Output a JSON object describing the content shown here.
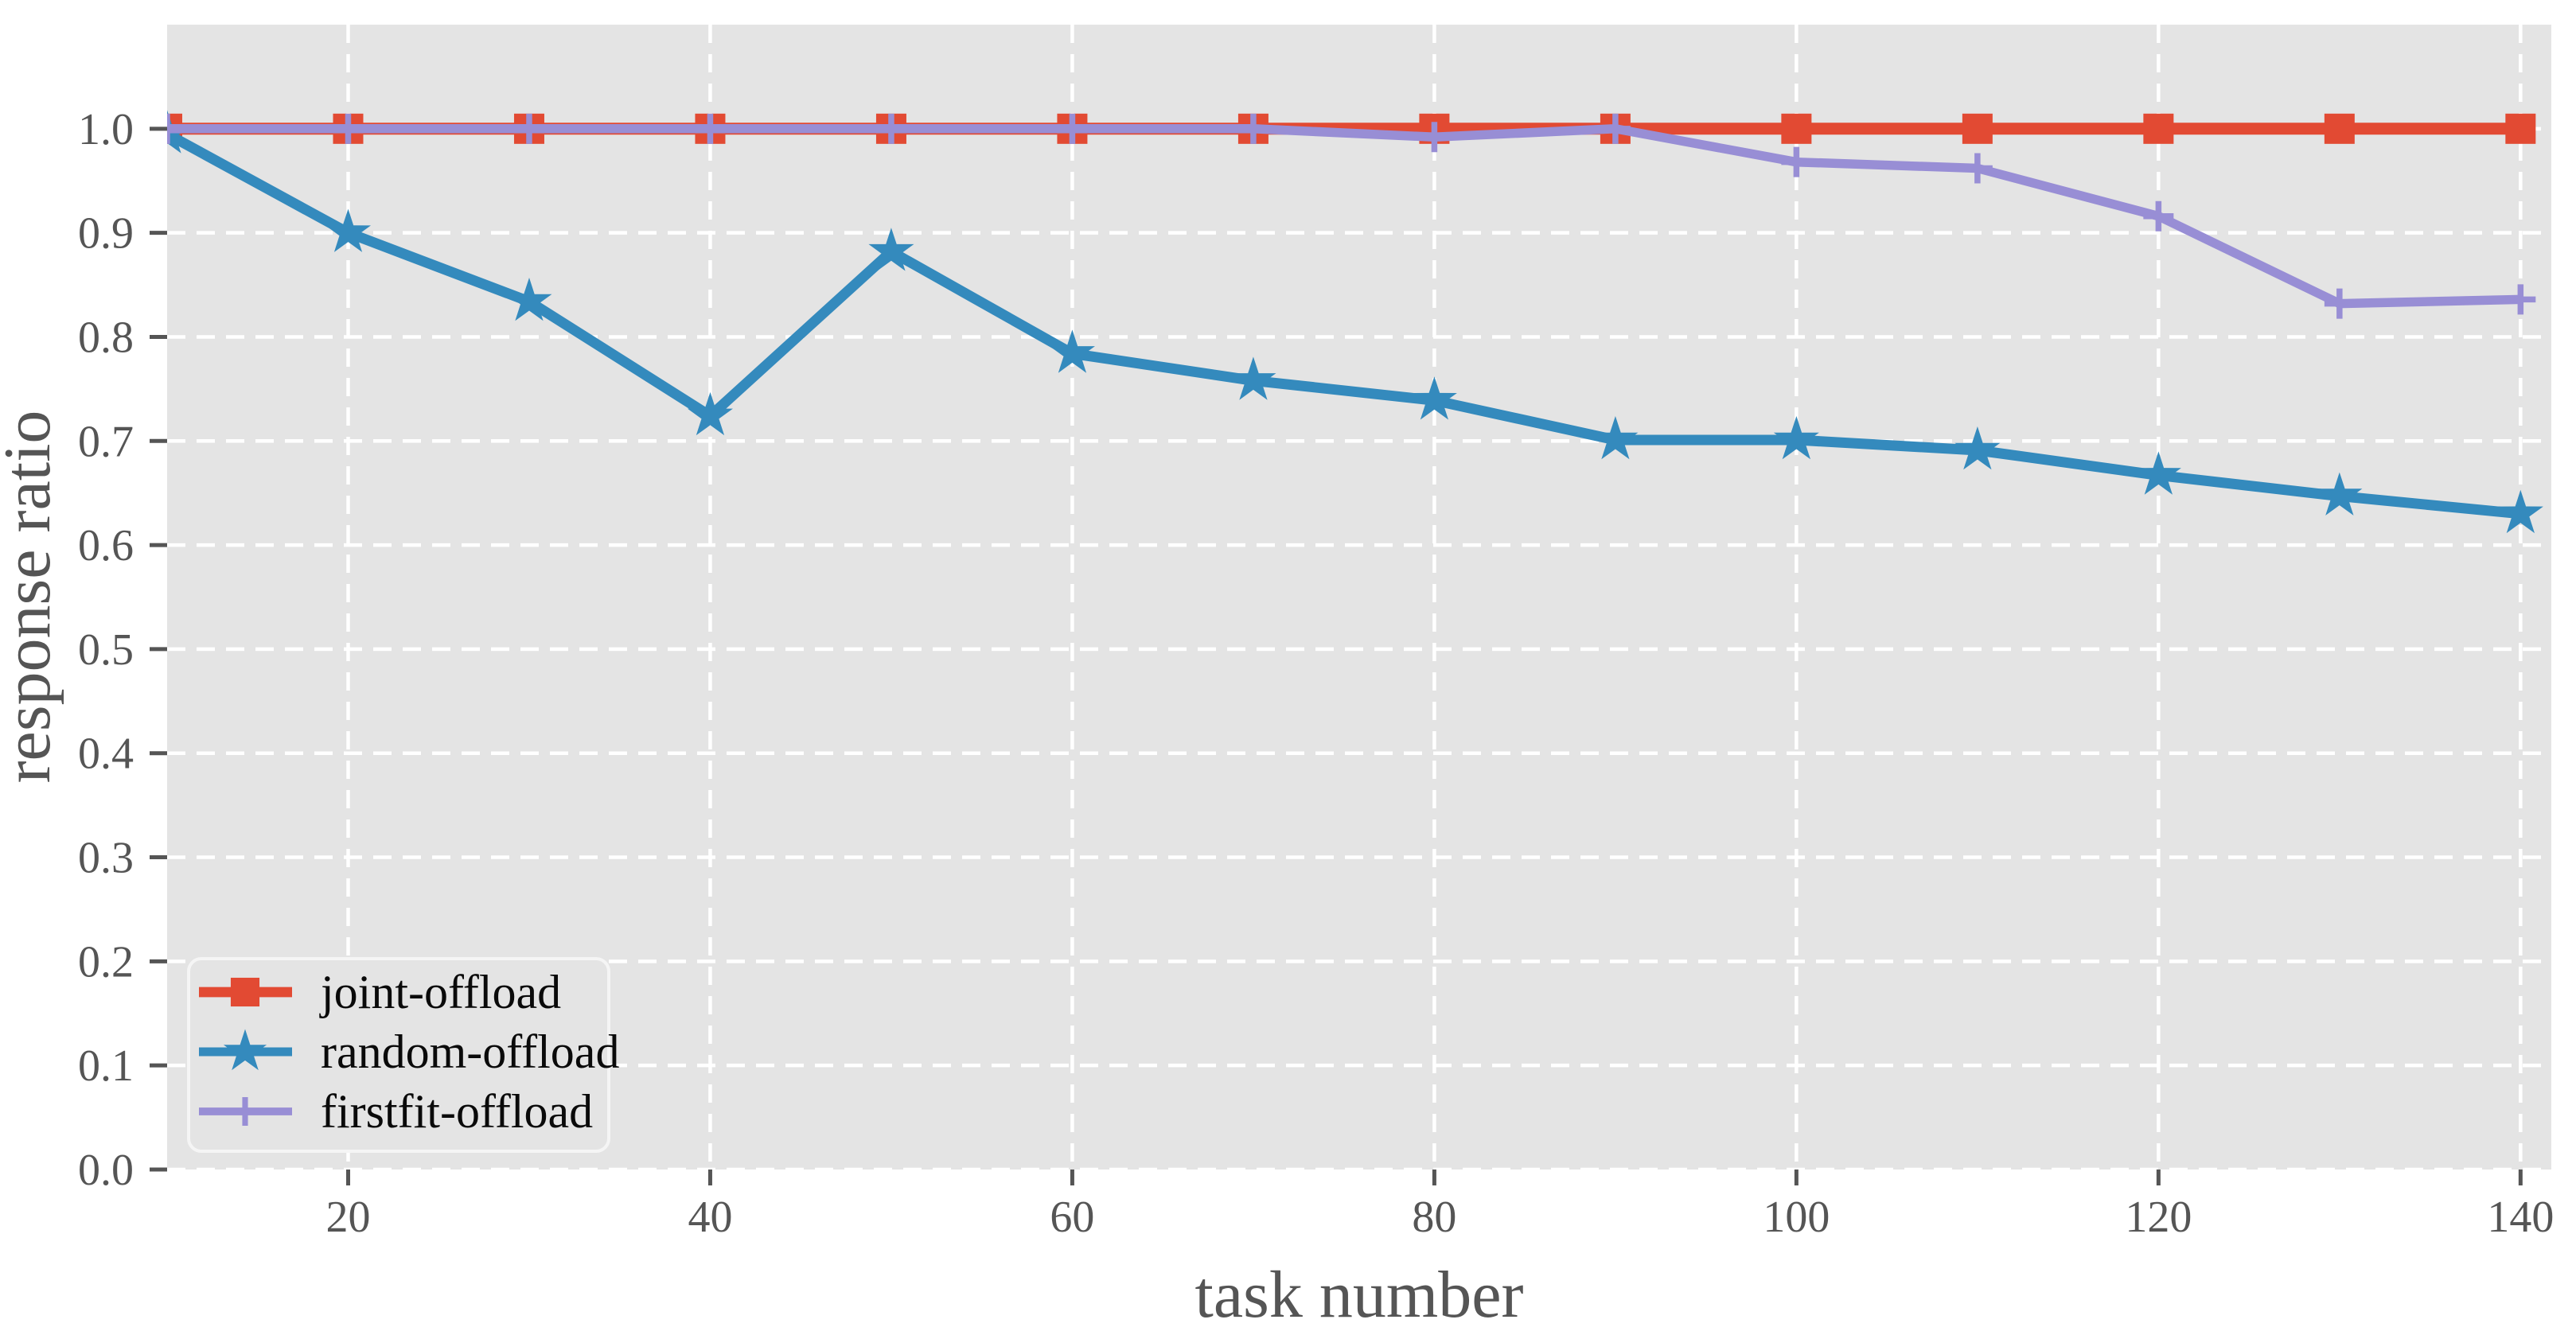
{
  "chart_data": {
    "type": "line",
    "xlabel": "task number",
    "ylabel": "response ratio",
    "x": [
      10,
      20,
      30,
      40,
      50,
      60,
      70,
      80,
      90,
      100,
      110,
      120,
      130,
      140
    ],
    "series": [
      {
        "name": "joint-offload",
        "color": "#E24A33",
        "marker": "square",
        "values": [
          1.0,
          1.0,
          1.0,
          1.0,
          1.0,
          1.0,
          1.0,
          1.0,
          1.0,
          1.0,
          1.0,
          1.0,
          1.0,
          1.0
        ]
      },
      {
        "name": "random-offload",
        "color": "#348ABD",
        "marker": "star",
        "values": [
          0.995,
          0.9,
          0.834,
          0.724,
          0.882,
          0.784,
          0.758,
          0.739,
          0.701,
          0.701,
          0.691,
          0.667,
          0.647,
          0.63
        ]
      },
      {
        "name": "firstfit-offload",
        "color": "#988ED5",
        "marker": "plus",
        "values": [
          1.0,
          1.0,
          1.0,
          1.0,
          1.0,
          1.0,
          1.0,
          0.992,
          1.0,
          0.968,
          0.962,
          0.916,
          0.832,
          0.836
        ]
      }
    ],
    "xticks": [
      20,
      40,
      60,
      80,
      100,
      120,
      140
    ],
    "yticks": [
      0.0,
      0.1,
      0.2,
      0.3,
      0.4,
      0.5,
      0.6,
      0.7,
      0.8,
      0.9,
      1.0
    ],
    "xlim": [
      10,
      141.7
    ],
    "ylim": [
      0,
      1.1
    ],
    "grid": true,
    "grid_style": "dashed",
    "legend_position": "lower left",
    "colors": {
      "plot_background": "#E4E4E4",
      "grid": "#FFFFFF",
      "tick_text": "#555555",
      "legend_text": "#0a0a0a",
      "legend_border": "#F5F5F5",
      "figure_background": "#FFFFFF"
    }
  }
}
